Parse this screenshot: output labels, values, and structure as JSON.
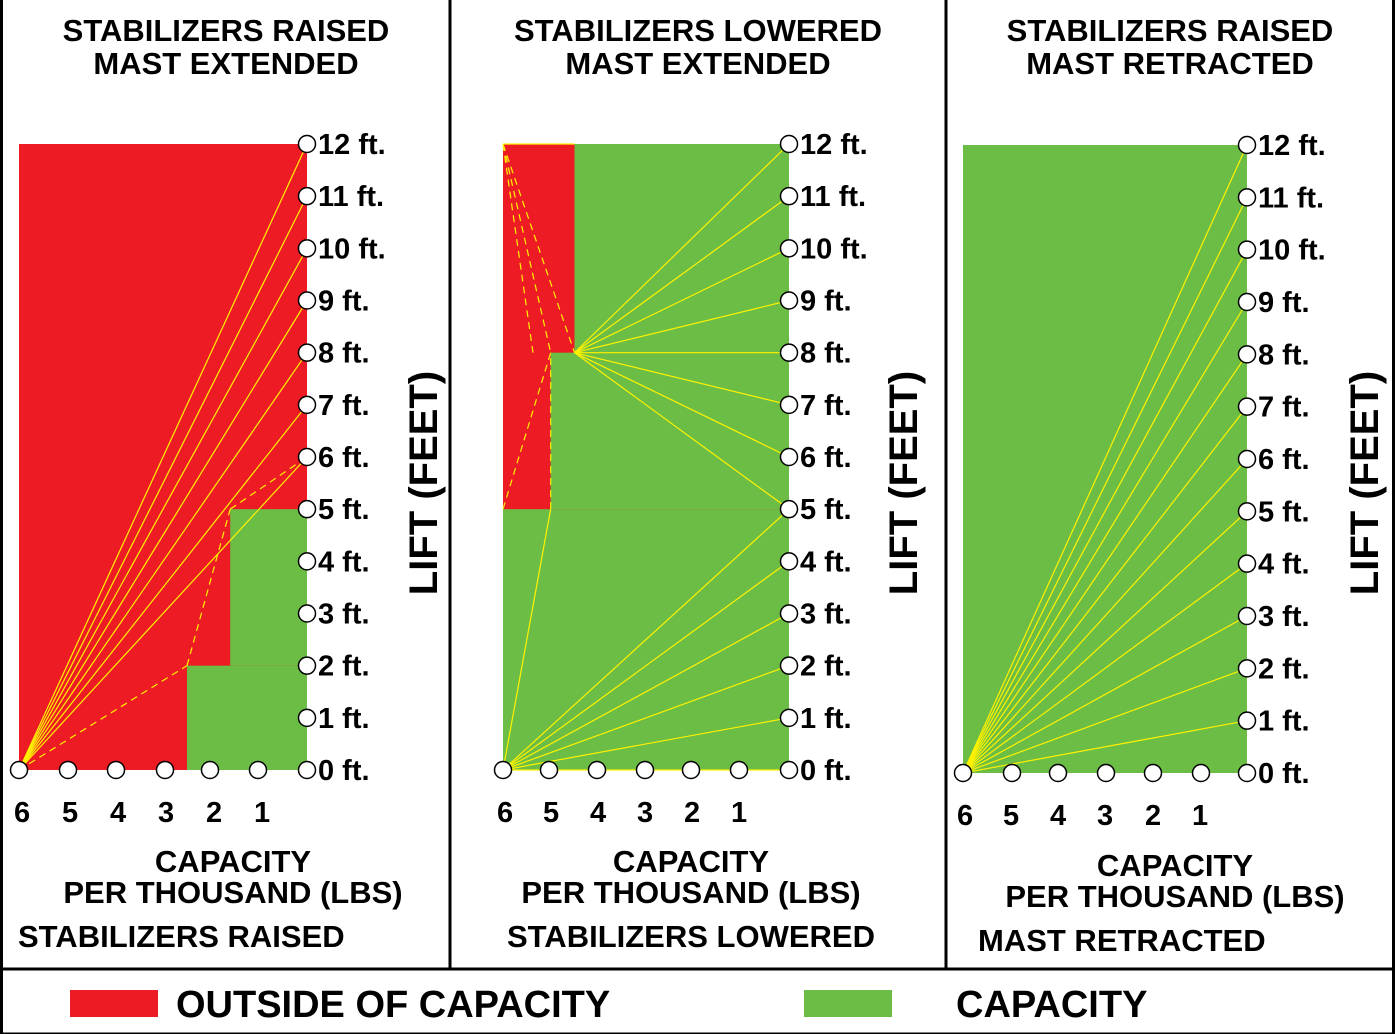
{
  "colors": {
    "outside": "#ed1c24",
    "capacity": "#6cbd45",
    "line": "#fff200",
    "border": "#000000"
  },
  "panels": [
    {
      "title": [
        "STABILIZERS RAISED",
        "MAST EXTENDED"
      ],
      "footer_capacity": "CAPACITY",
      "footer_per": "PER THOUSAND (LBS)",
      "footer_mode": "STABILIZERS RAISED",
      "axis_label": "LIFT (FEET)"
    },
    {
      "title": [
        "STABILIZERS LOWERED",
        "MAST EXTENDED"
      ],
      "footer_capacity": "CAPACITY",
      "footer_per": "PER THOUSAND (LBS)",
      "footer_mode": "STABILIZERS LOWERED",
      "axis_label": "LIFT (FEET)"
    },
    {
      "title": [
        "STABILIZERS RAISED",
        "MAST RETRACTED"
      ],
      "footer_capacity": "CAPACITY",
      "footer_per": "PER THOUSAND (LBS)",
      "footer_mode": "MAST RETRACTED",
      "axis_label": "LIFT (FEET)"
    }
  ],
  "lift_ticks": [
    "0 ft.",
    "1 ft.",
    "2 ft.",
    "3 ft.",
    "4 ft.",
    "5 ft.",
    "6 ft.",
    "7 ft.",
    "8 ft.",
    "9 ft.",
    "10 ft.",
    "11 ft.",
    "12 ft."
  ],
  "capacity_ticks": [
    "6",
    "5",
    "4",
    "3",
    "2",
    "1"
  ],
  "legend": {
    "outside_label": "OUTSIDE OF CAPACITY",
    "capacity_label": "CAPACITY"
  },
  "chart_data": [
    {
      "type": "area",
      "title": "STABILIZERS RAISED MAST EXTENDED",
      "xlabel": "CAPACITY PER THOUSAND (LBS)",
      "ylabel": "LIFT (FEET)",
      "x_ticks": [
        6,
        5,
        4,
        3,
        2,
        1
      ],
      "y_ticks": [
        0,
        1,
        2,
        3,
        4,
        5,
        6,
        7,
        8,
        9,
        10,
        11,
        12
      ],
      "capacity_zones": [
        {
          "lift_from": 0,
          "lift_to": 2,
          "max_capacity": 2.5
        },
        {
          "lift_from": 2,
          "lift_to": 5,
          "max_capacity": 1.6
        }
      ]
    },
    {
      "type": "area",
      "title": "STABILIZERS LOWERED MAST EXTENDED",
      "xlabel": "CAPACITY PER THOUSAND (LBS)",
      "ylabel": "LIFT (FEET)",
      "x_ticks": [
        6,
        5,
        4,
        3,
        2,
        1
      ],
      "y_ticks": [
        0,
        1,
        2,
        3,
        4,
        5,
        6,
        7,
        8,
        9,
        10,
        11,
        12
      ],
      "capacity_zones": [
        {
          "lift_from": 0,
          "lift_to": 5,
          "max_capacity": 6
        },
        {
          "lift_from": 5,
          "lift_to": 8,
          "max_capacity": 5
        },
        {
          "lift_from": 8,
          "lift_to": 12,
          "max_capacity": 4.5
        }
      ]
    },
    {
      "type": "area",
      "title": "STABILIZERS RAISED MAST RETRACTED",
      "xlabel": "CAPACITY PER THOUSAND (LBS)",
      "ylabel": "LIFT (FEET)",
      "x_ticks": [
        6,
        5,
        4,
        3,
        2,
        1
      ],
      "y_ticks": [
        0,
        1,
        2,
        3,
        4,
        5,
        6,
        7,
        8,
        9,
        10,
        11,
        12
      ],
      "capacity_zones": [
        {
          "lift_from": 0,
          "lift_to": 12,
          "max_capacity": 6
        }
      ]
    }
  ]
}
